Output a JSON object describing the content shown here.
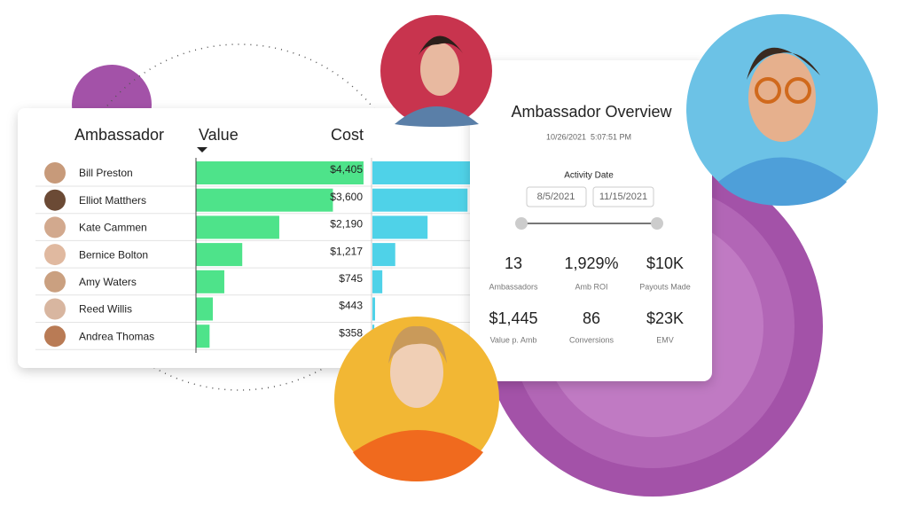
{
  "table": {
    "headers": [
      "Ambassador",
      "Value",
      "Cost"
    ],
    "rows": [
      {
        "name": "Bill Preston",
        "value": 4405,
        "value_label": "$4,405",
        "cost": 2600
      },
      {
        "name": "Elliot Matthers",
        "value": 3600,
        "value_label": "$3,600",
        "cost": 2500
      },
      {
        "name": "Kate Cammen",
        "value": 2190,
        "value_label": "$2,190",
        "cost": 1450
      },
      {
        "name": "Bernice Bolton",
        "value": 1217,
        "value_label": "$1,217",
        "cost": 600
      },
      {
        "name": "Amy Waters",
        "value": 745,
        "value_label": "$745",
        "cost": 260
      },
      {
        "name": "Reed Willis",
        "value": 443,
        "value_label": "$443",
        "cost": 70
      },
      {
        "name": "Andrea Thomas",
        "value": 358,
        "value_label": "$358",
        "cost": 50
      }
    ]
  },
  "overview": {
    "title": "Ambassador Overview",
    "timestamp": "10/26/2021  5:07:51 PM",
    "date_label": "Activity Date",
    "date_from": "8/5/2021",
    "date_to": "11/15/2021",
    "kpis": [
      {
        "value": "13",
        "label": "Ambassadors"
      },
      {
        "value": "1,929%",
        "label": "Amb ROI"
      },
      {
        "value": "$10K",
        "label": "Payouts Made"
      },
      {
        "value": "$1,445",
        "label": "Value p. Amb"
      },
      {
        "value": "86",
        "label": "Conversions"
      },
      {
        "value": "$23K",
        "label": "EMV"
      }
    ]
  }
}
